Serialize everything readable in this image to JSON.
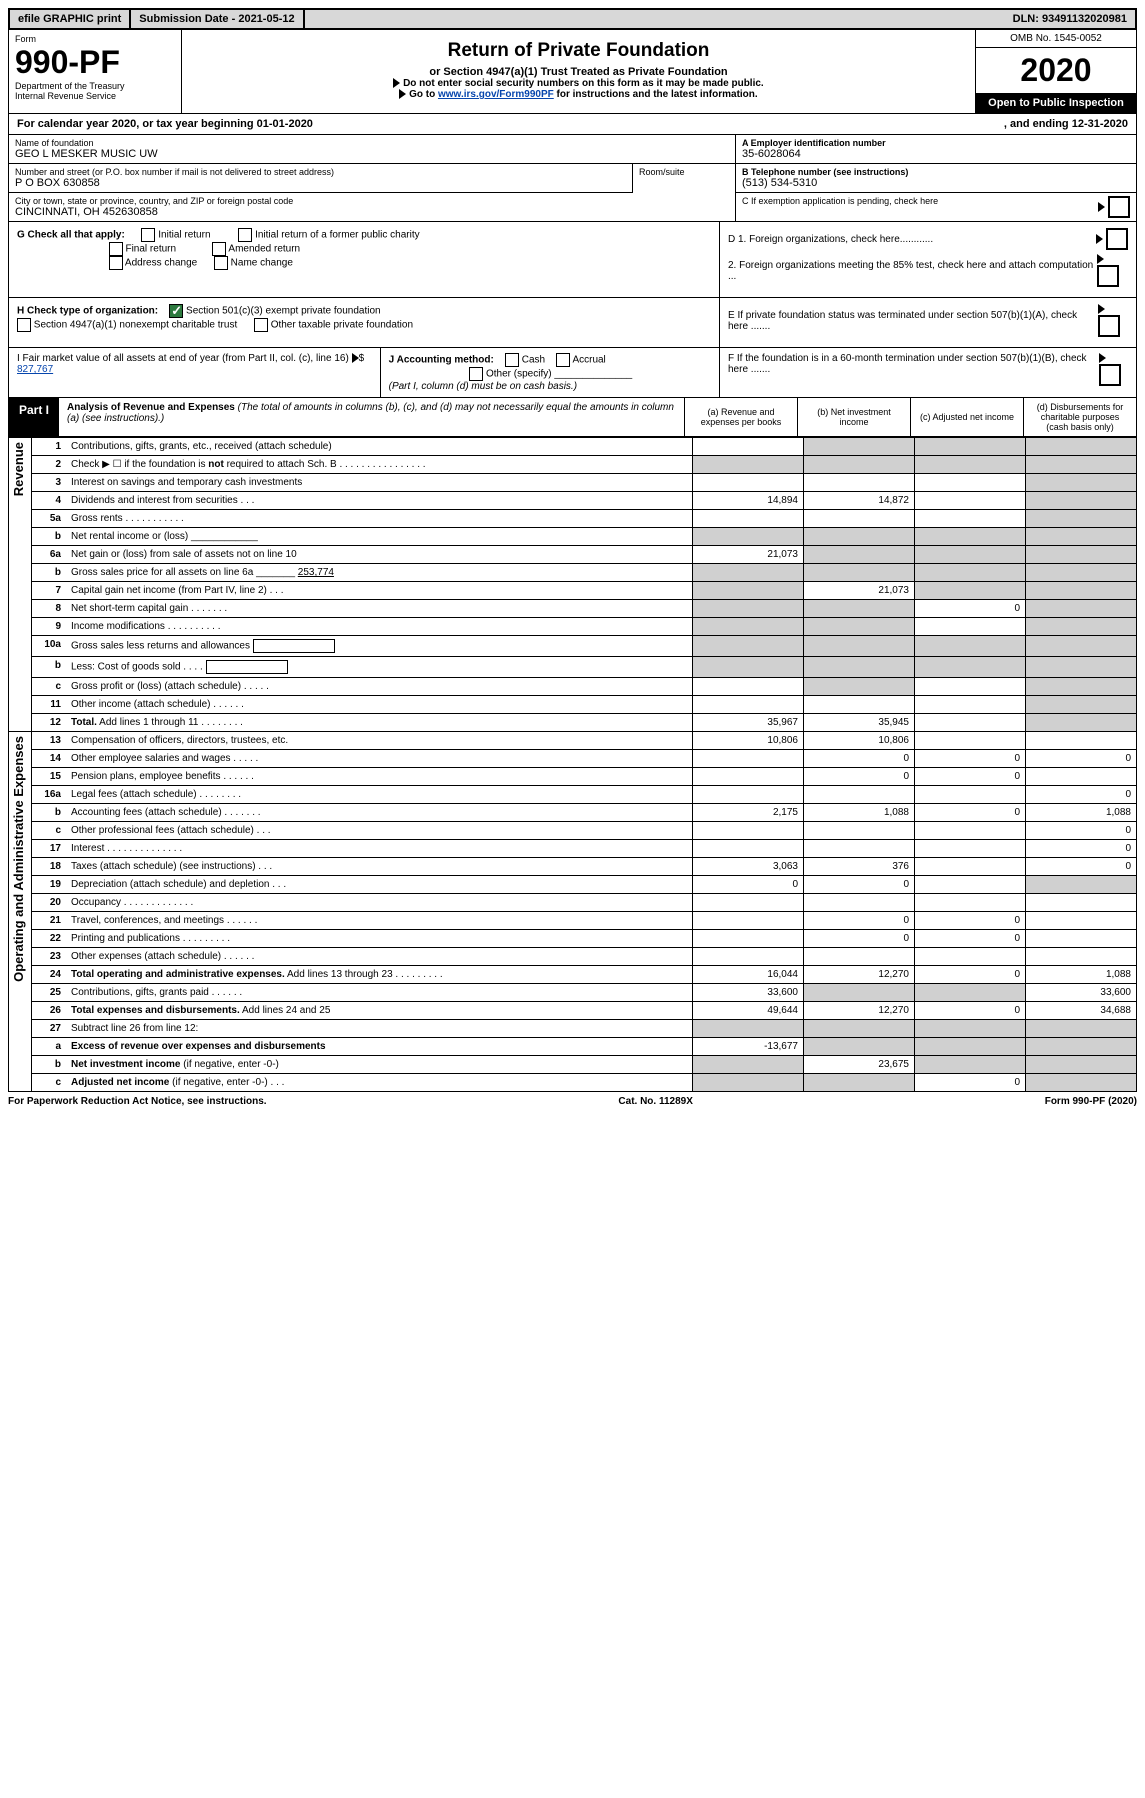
{
  "topbar": {
    "efile": "efile GRAPHIC print",
    "subdate_label": "Submission Date - ",
    "subdate": "2021-05-12",
    "dln_label": "DLN: ",
    "dln": "93491132020981"
  },
  "header": {
    "form_label": "Form",
    "form_no": "990-PF",
    "dept1": "Department of the Treasury",
    "dept2": "Internal Revenue Service",
    "title": "Return of Private Foundation",
    "subtitle": "or Section 4947(a)(1) Trust Treated as Private Foundation",
    "note1": "Do not enter social security numbers on this form as it may be made public.",
    "note2_pre": "Go to ",
    "note2_link": "www.irs.gov/Form990PF",
    "note2_post": " for instructions and the latest information.",
    "omb": "OMB No. 1545-0052",
    "year": "2020",
    "open": "Open to Public Inspection"
  },
  "cal": {
    "line_a": "For calendar year 2020, or tax year beginning ",
    "begin": "01-01-2020",
    "mid": " , and ending ",
    "end": "12-31-2020"
  },
  "id": {
    "name_label": "Name of foundation",
    "name": "GEO L MESKER MUSIC UW",
    "addr_label": "Number and street (or P.O. box number if mail is not delivered to street address)",
    "addr": "P O BOX 630858",
    "room_label": "Room/suite",
    "city_label": "City or town, state or province, country, and ZIP or foreign postal code",
    "city": "CINCINNATI, OH  452630858",
    "a_label": "A Employer identification number",
    "a_val": "35-6028064",
    "b_label": "B Telephone number (see instructions)",
    "b_val": "(513) 534-5310",
    "c_label": "C If exemption application is pending, check here"
  },
  "g": {
    "label": "G Check all that apply:",
    "opts": [
      "Initial return",
      "Final return",
      "Address change",
      "Initial return of a former public charity",
      "Amended return",
      "Name change"
    ]
  },
  "h": {
    "label": "H Check type of organization:",
    "opt1": "Section 501(c)(3) exempt private foundation",
    "opt2": "Section 4947(a)(1) nonexempt charitable trust",
    "opt3": "Other taxable private foundation"
  },
  "d": {
    "d1": "D 1. Foreign organizations, check here............",
    "d2": "2. Foreign organizations meeting the 85% test, check here and attach computation ...",
    "e": "E  If private foundation status was terminated under section 507(b)(1)(A), check here .......",
    "f": "F  If the foundation is in a 60-month termination under section 507(b)(1)(B), check here ......."
  },
  "i": {
    "label": "I Fair market value of all assets at end of year (from Part II, col. (c), line 16)",
    "prefix": "$",
    "val": "827,767"
  },
  "j": {
    "label": "J Accounting method:",
    "cash": "Cash",
    "accrual": "Accrual",
    "other": "Other (specify)",
    "note": "(Part I, column (d) must be on cash basis.)"
  },
  "part1": {
    "tab": "Part I",
    "title_bold": "Analysis of Revenue and Expenses",
    "title_it": " (The total of amounts in columns (b), (c), and (d) may not necessarily equal the amounts in column (a) (see instructions).)",
    "cols": {
      "a": "(a)    Revenue and expenses per books",
      "b": "(b)    Net investment income",
      "c": "(c)    Adjusted net income",
      "d": "(d)   Disbursements for charitable purposes (cash basis only)"
    }
  },
  "section_labels": {
    "rev": "Revenue",
    "exp": "Operating and Administrative Expenses"
  },
  "rows": [
    {
      "n": "1",
      "lbl": "Contributions, gifts, grants, etc., received (attach schedule)",
      "a": "",
      "b": "-",
      "c": "-",
      "d": "-"
    },
    {
      "n": "2",
      "lbl": "Check ▶ ☐ if the foundation is <b>not</b> required to attach Sch. B    .   .   .   .   .   .   .   .   .   .   .   .   .   .   .   .",
      "a": "-",
      "b": "-",
      "c": "-",
      "d": "-"
    },
    {
      "n": "3",
      "lbl": "Interest on savings and temporary cash investments",
      "a": "",
      "b": "",
      "c": "",
      "d": "-"
    },
    {
      "n": "4",
      "lbl": "Dividends and interest from securities    .   .   .",
      "a": "14,894",
      "b": "14,872",
      "c": "",
      "d": "-"
    },
    {
      "n": "5a",
      "lbl": "Gross rents    .   .   .   .   .   .   .   .   .   .   .",
      "a": "",
      "b": "",
      "c": "",
      "d": "-"
    },
    {
      "n": "b",
      "lbl": "Net rental income or (loss)  ____________",
      "a": "-",
      "b": "-",
      "c": "-",
      "d": "-"
    },
    {
      "n": "6a",
      "lbl": "Net gain or (loss) from sale of assets not on line 10",
      "a": "21,073",
      "b": "-",
      "c": "-",
      "d": "-"
    },
    {
      "n": "b",
      "lbl": "Gross sales price for all assets on line 6a _______ <u>253,774</u>",
      "a": "-",
      "b": "-",
      "c": "-",
      "d": "-"
    },
    {
      "n": "7",
      "lbl": "Capital gain net income (from Part IV, line 2)    .   .   .",
      "a": "-",
      "b": "21,073",
      "c": "-",
      "d": "-"
    },
    {
      "n": "8",
      "lbl": "Net short-term capital gain    .   .   .   .   .   .   .",
      "a": "-",
      "b": "-",
      "c": "0",
      "d": "-"
    },
    {
      "n": "9",
      "lbl": "Income modifications  .   .   .   .   .   .   .   .   .   .",
      "a": "-",
      "b": "-",
      "c": "",
      "d": "-"
    },
    {
      "n": "10a",
      "lbl": "Gross sales less returns and allowances  <span style='display:inline-block;width:80px;border:1px solid #000;height:12px;vertical-align:middle'></span>",
      "a": "-",
      "b": "-",
      "c": "-",
      "d": "-"
    },
    {
      "n": "b",
      "lbl": "Less: Cost of goods sold    .   .   .   .   <span style='display:inline-block;width:80px;border:1px solid #000;height:12px;vertical-align:middle'></span>",
      "a": "-",
      "b": "-",
      "c": "-",
      "d": "-"
    },
    {
      "n": "c",
      "lbl": "Gross profit or (loss) (attach schedule)    .   .   .   .   .",
      "a": "",
      "b": "-",
      "c": "",
      "d": "-"
    },
    {
      "n": "11",
      "lbl": "Other income (attach schedule)    .   .   .   .   .   .",
      "a": "",
      "b": "",
      "c": "",
      "d": "-"
    },
    {
      "n": "12",
      "lbl": "<b>Total.</b> Add lines 1 through 11   .   .   .   .   .   .   .   .",
      "a": "35,967",
      "b": "35,945",
      "c": "",
      "d": "-"
    }
  ],
  "exprows": [
    {
      "n": "13",
      "lbl": "Compensation of officers, directors, trustees, etc.",
      "a": "10,806",
      "b": "10,806",
      "c": "",
      "d": ""
    },
    {
      "n": "14",
      "lbl": "Other employee salaries and wages    .   .   .   .   .",
      "a": "",
      "b": "0",
      "c": "0",
      "d": "0"
    },
    {
      "n": "15",
      "lbl": "Pension plans, employee benefits    .   .   .   .   .   .",
      "a": "",
      "b": "0",
      "c": "0",
      "d": ""
    },
    {
      "n": "16a",
      "lbl": "Legal fees (attach schedule)  .   .   .   .   .   .   .   .",
      "a": "",
      "b": "",
      "c": "",
      "d": "0"
    },
    {
      "n": "b",
      "lbl": "Accounting fees (attach schedule)  .   .   .   .   .   .   .",
      "a": "2,175",
      "b": "1,088",
      "c": "0",
      "d": "1,088"
    },
    {
      "n": "c",
      "lbl": "Other professional fees (attach schedule)    .   .   .",
      "a": "",
      "b": "",
      "c": "",
      "d": "0"
    },
    {
      "n": "17",
      "lbl": "Interest  .   .   .   .   .   .   .   .   .   .   .   .   .   .",
      "a": "",
      "b": "",
      "c": "",
      "d": "0"
    },
    {
      "n": "18",
      "lbl": "Taxes (attach schedule) (see instructions)    .   .   .",
      "a": "3,063",
      "b": "376",
      "c": "",
      "d": "0"
    },
    {
      "n": "19",
      "lbl": "Depreciation (attach schedule) and depletion    .   .   .",
      "a": "0",
      "b": "0",
      "c": "",
      "d": "-"
    },
    {
      "n": "20",
      "lbl": "Occupancy  .   .   .   .   .   .   .   .   .   .   .   .   .",
      "a": "",
      "b": "",
      "c": "",
      "d": ""
    },
    {
      "n": "21",
      "lbl": "Travel, conferences, and meetings  .   .   .   .   .   .",
      "a": "",
      "b": "0",
      "c": "0",
      "d": ""
    },
    {
      "n": "22",
      "lbl": "Printing and publications  .   .   .   .   .   .   .   .   .",
      "a": "",
      "b": "0",
      "c": "0",
      "d": ""
    },
    {
      "n": "23",
      "lbl": "Other expenses (attach schedule)  .   .   .   .   .   .",
      "a": "",
      "b": "",
      "c": "",
      "d": ""
    },
    {
      "n": "24",
      "lbl": "<b>Total operating and administrative expenses.</b> Add lines 13 through 23   .   .   .   .   .   .   .   .   .",
      "a": "16,044",
      "b": "12,270",
      "c": "0",
      "d": "1,088"
    },
    {
      "n": "25",
      "lbl": "Contributions, gifts, grants paid    .   .   .   .   .   .",
      "a": "33,600",
      "b": "-",
      "c": "-",
      "d": "33,600"
    },
    {
      "n": "26",
      "lbl": "<b>Total expenses and disbursements.</b> Add lines 24 and 25",
      "a": "49,644",
      "b": "12,270",
      "c": "0",
      "d": "34,688"
    },
    {
      "n": "27",
      "lbl": "Subtract line 26 from line 12:",
      "a": "-",
      "b": "-",
      "c": "-",
      "d": "-"
    },
    {
      "n": "a",
      "lbl": "<b>Excess of revenue over expenses and disbursements</b>",
      "a": "-13,677",
      "b": "-",
      "c": "-",
      "d": "-"
    },
    {
      "n": "b",
      "lbl": "<b>Net investment income</b> (if negative, enter -0-)",
      "a": "-",
      "b": "23,675",
      "c": "-",
      "d": "-"
    },
    {
      "n": "c",
      "lbl": "<b>Adjusted net income</b> (if negative, enter -0-)    .   .   .",
      "a": "-",
      "b": "-",
      "c": "0",
      "d": "-"
    }
  ],
  "footer": {
    "left": "For Paperwork Reduction Act Notice, see instructions.",
    "mid": "Cat. No. 11289X",
    "right": "Form 990-PF (2020)"
  }
}
